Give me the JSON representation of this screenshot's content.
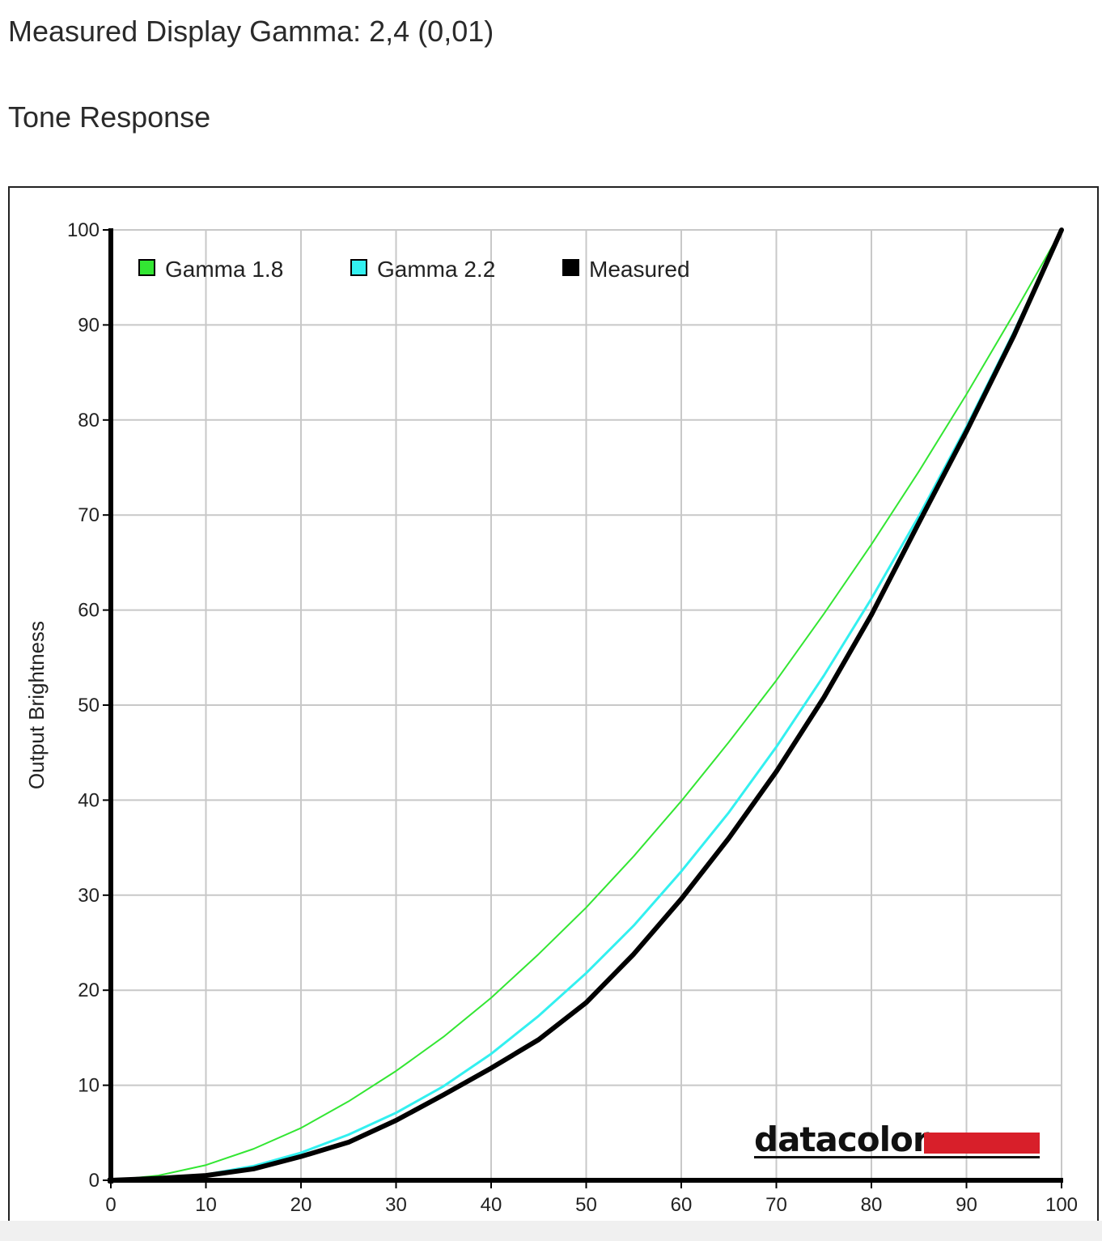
{
  "header": {
    "title": "Measured Display Gamma: 2,4 (0,01)",
    "subtitle": "Tone Response"
  },
  "logo": {
    "text": "datacolor",
    "bar_color": "#d81f2a"
  },
  "colors": {
    "gamma18": "#33e633",
    "gamma22": "#33f0f0",
    "measured": "#000000",
    "grid": "#c8c8c8"
  },
  "chart_data": {
    "type": "line",
    "title": "",
    "xlabel": "",
    "ylabel": "Output Brightness",
    "xlim": [
      0,
      100
    ],
    "ylim": [
      0,
      100
    ],
    "x_ticks": [
      0,
      10,
      20,
      30,
      40,
      50,
      60,
      70,
      80,
      90,
      100
    ],
    "y_ticks": [
      0,
      10,
      20,
      30,
      40,
      50,
      60,
      70,
      80,
      90,
      100
    ],
    "grid": true,
    "legend_position": "top-left",
    "series": [
      {
        "name": "Gamma 1.8",
        "color": "#33e633",
        "x": [
          0,
          5,
          10,
          15,
          20,
          25,
          30,
          35,
          40,
          45,
          50,
          55,
          60,
          65,
          70,
          75,
          80,
          85,
          90,
          95,
          100
        ],
        "y": [
          0,
          0.5,
          1.6,
          3.3,
          5.5,
          8.3,
          11.5,
          15.1,
          19.2,
          23.8,
          28.7,
          34.1,
          39.9,
          46.1,
          52.6,
          59.6,
          66.9,
          74.6,
          82.7,
          91.2,
          100
        ]
      },
      {
        "name": "Gamma 2.2",
        "color": "#33f0f0",
        "x": [
          0,
          5,
          10,
          15,
          20,
          25,
          30,
          35,
          40,
          45,
          50,
          55,
          60,
          65,
          70,
          75,
          80,
          85,
          90,
          95,
          100
        ],
        "y": [
          0,
          0.1,
          0.6,
          1.5,
          2.9,
          4.8,
          7.1,
          9.9,
          13.3,
          17.3,
          21.8,
          26.8,
          32.5,
          38.7,
          45.6,
          53.1,
          61.2,
          69.9,
          79.3,
          89.3,
          100
        ]
      },
      {
        "name": "Measured",
        "color": "#000000",
        "x": [
          0,
          5,
          10,
          15,
          20,
          25,
          30,
          35,
          40,
          45,
          50,
          55,
          60,
          65,
          70,
          75,
          80,
          85,
          90,
          95,
          100
        ],
        "y": [
          0,
          0.2,
          0.5,
          1.2,
          2.5,
          4.0,
          6.3,
          9.0,
          11.8,
          14.8,
          18.7,
          23.8,
          29.6,
          36.0,
          43.0,
          50.8,
          59.5,
          69.2,
          78.8,
          88.9,
          100
        ]
      }
    ]
  }
}
